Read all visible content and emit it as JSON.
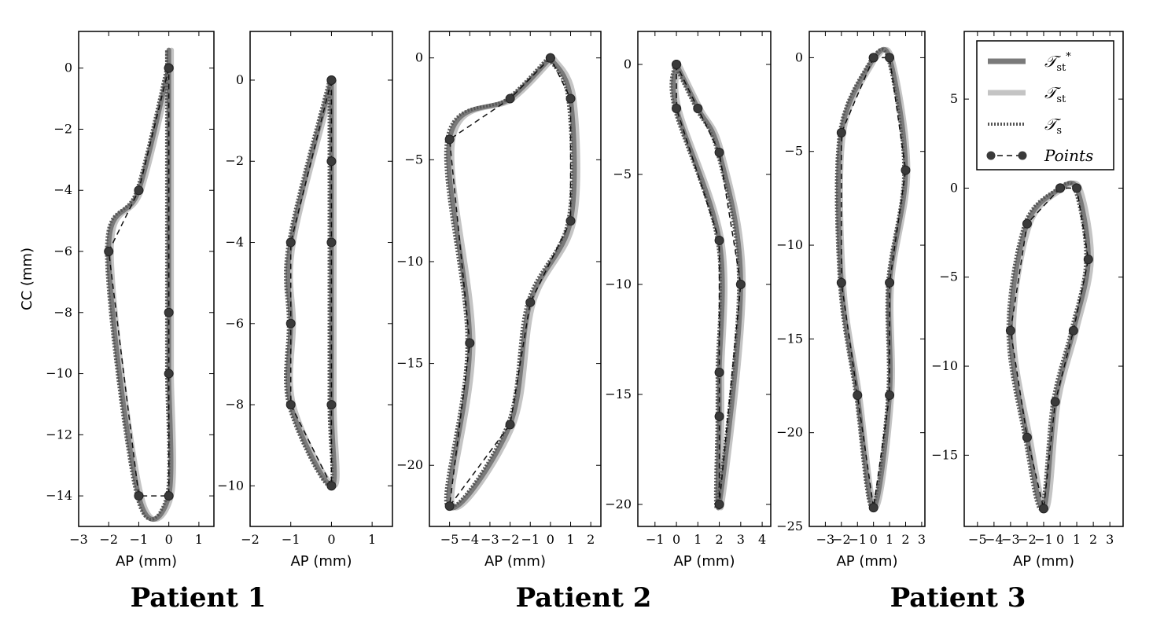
{
  "figure": {
    "patients": [
      {
        "label": "Patient 1"
      },
      {
        "label": "Patient 2"
      },
      {
        "label": "Patient 3"
      }
    ],
    "legend": {
      "entries": [
        {
          "key": "tst_star",
          "label": "𝒯",
          "sub": "st",
          "sup": "*",
          "color": "#7a7a7a",
          "style": "solid"
        },
        {
          "key": "tst",
          "label": "𝒯",
          "sub": "st",
          "sup": "",
          "color": "#c4c4c4",
          "style": "solid"
        },
        {
          "key": "ts",
          "label": "𝒯",
          "sub": "s",
          "sup": "",
          "color": "#555555",
          "style": "dotted"
        },
        {
          "key": "points",
          "label": "Points",
          "sub": "",
          "sup": "",
          "color": "#222222",
          "style": "dashed-markers"
        }
      ]
    }
  },
  "chart_data": [
    {
      "type": "scatter",
      "patient": "Patient 1",
      "xlabel": "AP (mm)",
      "ylabel": "CC (mm)",
      "xlim": [
        -3,
        1.5
      ],
      "ylim": [
        -15,
        1.2
      ],
      "xticks": [
        -3,
        -2,
        -1,
        0,
        1
      ],
      "yticks": [
        0,
        -2,
        -4,
        -6,
        -8,
        -10,
        -12,
        -14
      ],
      "points": {
        "x": [
          0,
          -1,
          -2,
          -1,
          0,
          0,
          0,
          0,
          0
        ],
        "y": [
          0,
          -4,
          -6,
          -14,
          -14,
          -10,
          -8,
          0,
          0
        ]
      }
    },
    {
      "type": "scatter",
      "patient": "Patient 1",
      "xlabel": "AP (mm)",
      "ylabel": "",
      "xlim": [
        -2,
        1.5
      ],
      "ylim": [
        -11,
        1.2
      ],
      "xticks": [
        -2,
        -1,
        0,
        1
      ],
      "yticks": [
        0,
        -2,
        -4,
        -6,
        -8,
        -10
      ],
      "points": {
        "x": [
          0,
          -1,
          -1,
          -1,
          0,
          0,
          0,
          0,
          0
        ],
        "y": [
          0,
          -4,
          -6,
          -8,
          -10,
          -8,
          -4,
          -2,
          0
        ]
      }
    },
    {
      "type": "scatter",
      "patient": "Patient 2",
      "xlabel": "AP (mm)",
      "ylabel": "",
      "xlim": [
        -6,
        2.5
      ],
      "ylim": [
        -23,
        1.3
      ],
      "xticks": [
        -5,
        -4,
        -3,
        -2,
        -1,
        0,
        1,
        2
      ],
      "yticks": [
        0,
        -5,
        -10,
        -15,
        -20
      ],
      "points": {
        "x": [
          0,
          -2,
          -5,
          -4,
          -5,
          -2,
          -1,
          1,
          1,
          0
        ],
        "y": [
          0,
          -2,
          -4,
          -14,
          -22,
          -18,
          -12,
          -8,
          -2,
          0
        ]
      }
    },
    {
      "type": "scatter",
      "patient": "Patient 2",
      "xlabel": "AP (mm)",
      "ylabel": "",
      "xlim": [
        -1.8,
        4.4
      ],
      "ylim": [
        -21,
        1.5
      ],
      "xticks": [
        -1,
        0,
        1,
        2,
        3,
        4
      ],
      "yticks": [
        0,
        -5,
        -10,
        -15,
        -20
      ],
      "points": {
        "x": [
          0,
          0,
          2,
          2,
          2,
          2,
          3,
          2,
          1,
          0
        ],
        "y": [
          0,
          -2,
          -8,
          -14,
          -16,
          -20,
          -10,
          -4,
          -2,
          0
        ]
      }
    },
    {
      "type": "scatter",
      "patient": "Patient 3",
      "xlabel": "AP (mm)",
      "ylabel": "",
      "xlim": [
        -4,
        3.2
      ],
      "ylim": [
        -25,
        1.4
      ],
      "xticks": [
        -3,
        -2,
        -1,
        0,
        1,
        2,
        3
      ],
      "yticks": [
        0,
        -5,
        -10,
        -15,
        -20,
        -25
      ],
      "points": {
        "x": [
          0,
          -2,
          -2,
          -1,
          0,
          1,
          1,
          2,
          1,
          0
        ],
        "y": [
          0,
          -4,
          -12,
          -18,
          -24,
          -18,
          -12,
          -6,
          0,
          0
        ]
      }
    },
    {
      "type": "scatter",
      "patient": "Patient 3",
      "xlabel": "AP (mm)",
      "ylabel": "",
      "xlim": [
        -5.8,
        3.8
      ],
      "ylim": [
        -19,
        8.8
      ],
      "xticks": [
        -5,
        -4,
        -3,
        -2,
        -1,
        0,
        1,
        2,
        3
      ],
      "yticks": [
        5,
        0,
        -5,
        -10,
        -15
      ],
      "points": {
        "x": [
          0,
          -2,
          -3,
          -2,
          -1,
          -0.3,
          0.8,
          1.7,
          1,
          0
        ],
        "y": [
          0,
          -2,
          -8,
          -14,
          -18,
          -12,
          -8,
          -4,
          0,
          0
        ]
      }
    }
  ]
}
